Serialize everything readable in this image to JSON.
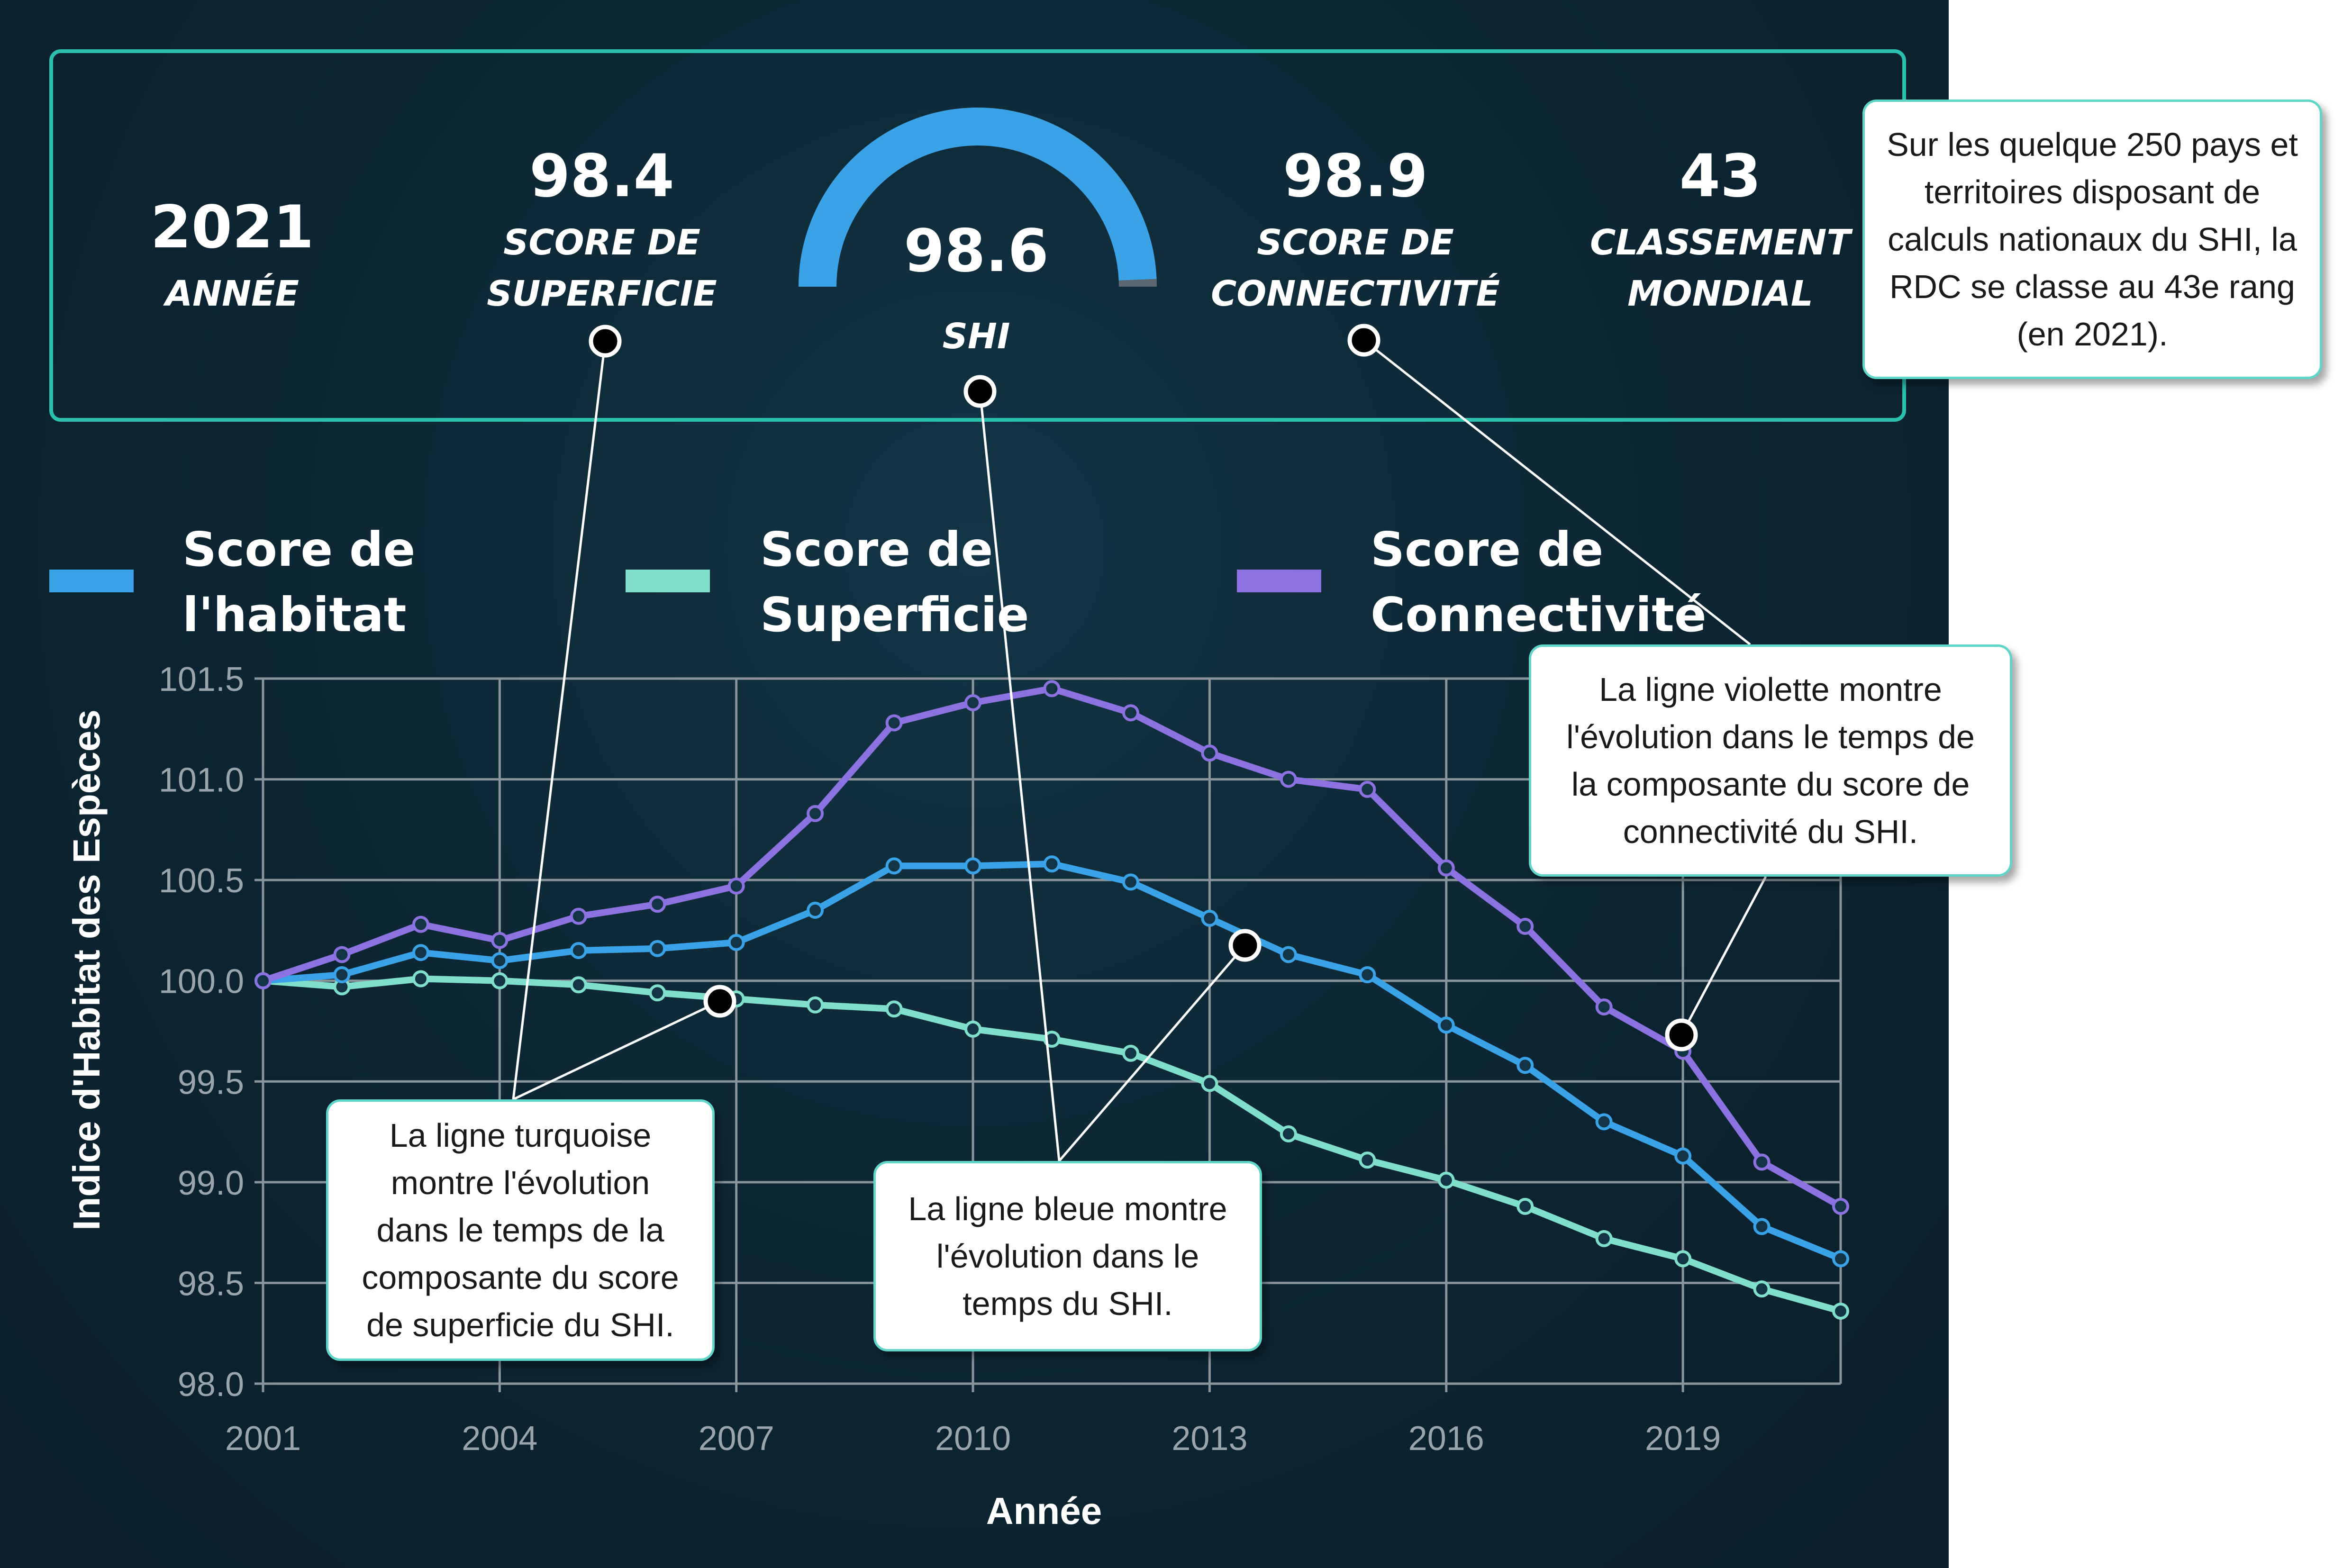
{
  "stats": {
    "year": {
      "value": "2021",
      "label": "Année"
    },
    "area": {
      "value": "98.4",
      "label_line1": "Score de",
      "label_line2": "Superficie"
    },
    "shi": {
      "value": "98.6",
      "label": "SHI",
      "fraction": 0.986
    },
    "connectivity": {
      "value": "98.9",
      "label_line1": "Score de",
      "label_line2": "Connectivité"
    },
    "rank": {
      "value": "43",
      "label_line1": "Classement",
      "label_line2": "Mondial"
    }
  },
  "legend": [
    {
      "line1": "Score de",
      "line2": "l'habitat",
      "color": "#3aa3e8"
    },
    {
      "line1": "Score de",
      "line2": "Superficie",
      "color": "#7fdfca"
    },
    {
      "line1": "Score de",
      "line2": "Connectivité",
      "color": "#8c72e0"
    }
  ],
  "callouts": {
    "rank": [
      "Sur les quelque 250 pays et",
      "territoires disposant de",
      "calculs nationaux du SHI, la",
      "RDC se classe au 43e rang",
      "(en 2021)."
    ],
    "purple": [
      "La ligne violette montre",
      "l'évolution dans le temps de",
      "la composante du score de",
      "connectivité du SHI."
    ],
    "turquoise": [
      "La ligne turquoise",
      "montre l'évolution",
      "dans le temps de la",
      "composante du score",
      "de superficie du SHI."
    ],
    "blue": [
      "La ligne bleue montre",
      "l'évolution dans le",
      "temps du SHI."
    ]
  },
  "chart_data": {
    "type": "line",
    "xlabel": "Année",
    "ylabel": "Indice d'Habitat des Espèces",
    "xlim": [
      2001,
      2021
    ],
    "ylim": [
      98.0,
      101.5
    ],
    "xticks": [
      "2001",
      "2004",
      "2007",
      "2010",
      "2013",
      "2016",
      "2019"
    ],
    "yticks": [
      "98.0",
      "98.5",
      "99.0",
      "99.5",
      "100.0",
      "100.5",
      "101.0",
      "101.5"
    ],
    "grid": true,
    "legend_position": "top",
    "x": [
      2001,
      2002,
      2003,
      2004,
      2005,
      2006,
      2007,
      2008,
      2009,
      2010,
      2011,
      2012,
      2013,
      2014,
      2015,
      2016,
      2017,
      2018,
      2019,
      2020,
      2021
    ],
    "series": [
      {
        "name": "Score de l'habitat",
        "color": "#3aa3e8",
        "values": [
          100.0,
          100.03,
          100.14,
          100.1,
          100.15,
          100.16,
          100.19,
          100.35,
          100.57,
          100.57,
          100.58,
          100.49,
          100.31,
          100.13,
          100.03,
          99.78,
          99.58,
          99.3,
          99.13,
          98.78,
          98.62
        ]
      },
      {
        "name": "Score de Superficie",
        "color": "#7fdfca",
        "values": [
          100.0,
          99.97,
          100.01,
          100.0,
          99.98,
          99.94,
          99.91,
          99.88,
          99.86,
          99.76,
          99.71,
          99.64,
          99.49,
          99.24,
          99.11,
          99.01,
          98.88,
          98.72,
          98.62,
          98.47,
          98.36
        ]
      },
      {
        "name": "Score de Connectivité",
        "color": "#8c72e0",
        "values": [
          100.0,
          100.13,
          100.28,
          100.2,
          100.32,
          100.38,
          100.47,
          100.83,
          101.28,
          101.38,
          101.45,
          101.33,
          101.13,
          101.0,
          100.95,
          100.56,
          100.27,
          99.87,
          99.65,
          99.1,
          98.88
        ]
      }
    ]
  }
}
